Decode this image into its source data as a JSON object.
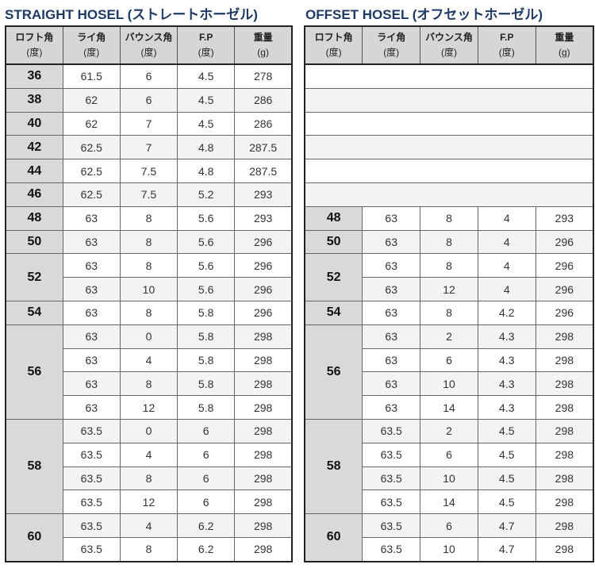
{
  "straight": {
    "title": "STRAIGHT HOSEL (ストレートホーゼル)",
    "headers": [
      [
        "ロフト角",
        "(度)"
      ],
      [
        "ライ角",
        "(度)"
      ],
      [
        "バウンス角",
        "(度)"
      ],
      [
        "F.P",
        "(度)"
      ],
      [
        "重量",
        "(g)"
      ]
    ],
    "groups": [
      {
        "loft": "36",
        "rows": [
          [
            "61.5",
            "6",
            "4.5",
            "278"
          ]
        ]
      },
      {
        "loft": "38",
        "rows": [
          [
            "62",
            "6",
            "4.5",
            "286"
          ]
        ]
      },
      {
        "loft": "40",
        "rows": [
          [
            "62",
            "7",
            "4.5",
            "286"
          ]
        ]
      },
      {
        "loft": "42",
        "rows": [
          [
            "62.5",
            "7",
            "4.8",
            "287.5"
          ]
        ]
      },
      {
        "loft": "44",
        "rows": [
          [
            "62.5",
            "7.5",
            "4.8",
            "287.5"
          ]
        ]
      },
      {
        "loft": "46",
        "rows": [
          [
            "62.5",
            "7.5",
            "5.2",
            "293"
          ]
        ]
      },
      {
        "loft": "48",
        "rows": [
          [
            "63",
            "8",
            "5.6",
            "293"
          ]
        ]
      },
      {
        "loft": "50",
        "rows": [
          [
            "63",
            "8",
            "5.6",
            "296"
          ]
        ]
      },
      {
        "loft": "52",
        "rows": [
          [
            "63",
            "8",
            "5.6",
            "296"
          ],
          [
            "63",
            "10",
            "5.6",
            "296"
          ]
        ]
      },
      {
        "loft": "54",
        "rows": [
          [
            "63",
            "8",
            "5.8",
            "296"
          ]
        ]
      },
      {
        "loft": "56",
        "rows": [
          [
            "63",
            "0",
            "5.8",
            "298"
          ],
          [
            "63",
            "4",
            "5.8",
            "298"
          ],
          [
            "63",
            "8",
            "5.8",
            "298"
          ],
          [
            "63",
            "12",
            "5.8",
            "298"
          ]
        ]
      },
      {
        "loft": "58",
        "rows": [
          [
            "63.5",
            "0",
            "6",
            "298"
          ],
          [
            "63.5",
            "4",
            "6",
            "298"
          ],
          [
            "63.5",
            "8",
            "6",
            "298"
          ],
          [
            "63.5",
            "12",
            "6",
            "298"
          ]
        ]
      },
      {
        "loft": "60",
        "rows": [
          [
            "63.5",
            "4",
            "6.2",
            "298"
          ],
          [
            "63.5",
            "8",
            "6.2",
            "298"
          ]
        ]
      }
    ]
  },
  "offset": {
    "title": "OFFSET HOSEL (オフセットホーゼル)",
    "headers": [
      [
        "ロフト角",
        "(度)"
      ],
      [
        "ライ角",
        "(度)"
      ],
      [
        "バウンス角",
        "(度)"
      ],
      [
        "F.P",
        "(度)"
      ],
      [
        "重量",
        "(g)"
      ]
    ],
    "empty_rows": 6,
    "groups": [
      {
        "loft": "48",
        "rows": [
          [
            "63",
            "8",
            "4",
            "293"
          ]
        ]
      },
      {
        "loft": "50",
        "rows": [
          [
            "63",
            "8",
            "4",
            "296"
          ]
        ]
      },
      {
        "loft": "52",
        "rows": [
          [
            "63",
            "8",
            "4",
            "296"
          ],
          [
            "63",
            "12",
            "4",
            "296"
          ]
        ]
      },
      {
        "loft": "54",
        "rows": [
          [
            "63",
            "8",
            "4.2",
            "296"
          ]
        ]
      },
      {
        "loft": "56",
        "rows": [
          [
            "63",
            "2",
            "4.3",
            "298"
          ],
          [
            "63",
            "6",
            "4.3",
            "298"
          ],
          [
            "63",
            "10",
            "4.3",
            "298"
          ],
          [
            "63",
            "14",
            "4.3",
            "298"
          ]
        ]
      },
      {
        "loft": "58",
        "rows": [
          [
            "63.5",
            "2",
            "4.5",
            "298"
          ],
          [
            "63.5",
            "6",
            "4.5",
            "298"
          ],
          [
            "63.5",
            "10",
            "4.5",
            "298"
          ],
          [
            "63.5",
            "14",
            "4.5",
            "298"
          ]
        ]
      },
      {
        "loft": "60",
        "rows": [
          [
            "63.5",
            "6",
            "4.7",
            "298"
          ],
          [
            "63.5",
            "10",
            "4.7",
            "298"
          ]
        ]
      }
    ]
  }
}
